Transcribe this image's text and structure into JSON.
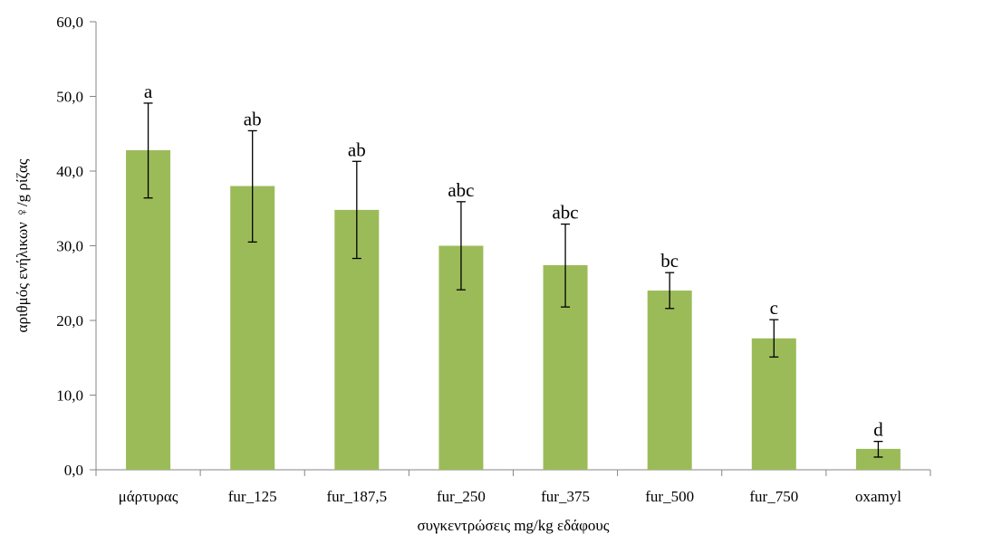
{
  "chart_data": {
    "type": "bar",
    "title": "",
    "xlabel": "συγκεντρώσεις mg/kg εδάφους",
    "ylabel": "αριθμός ενήλικων ♀/g ρίζας",
    "categories": [
      "μάρτυρας",
      "fur_125",
      "fur_187,5",
      "fur_250",
      "fur_375",
      "fur_500",
      "fur_750",
      "oxamyl"
    ],
    "values": [
      42.8,
      38.0,
      34.8,
      30.0,
      27.4,
      24.0,
      17.6,
      2.8
    ],
    "error_low": [
      36.4,
      30.5,
      28.3,
      24.1,
      21.8,
      21.6,
      15.1,
      1.7
    ],
    "error_high": [
      49.1,
      45.4,
      41.3,
      35.9,
      32.9,
      26.4,
      20.1,
      3.8
    ],
    "significance_labels": [
      "a",
      "ab",
      "ab",
      "abc",
      "abc",
      "bc",
      "c",
      "d"
    ],
    "ylim": [
      0,
      60
    ],
    "yticks": [
      "0,0",
      "10,0",
      "20,0",
      "30,0",
      "40,0",
      "50,0",
      "60,0"
    ],
    "grid": false,
    "legend": "none",
    "colors": {
      "bar": "#9bbb59",
      "axis": "#868686",
      "error_bar": "#000000"
    }
  }
}
